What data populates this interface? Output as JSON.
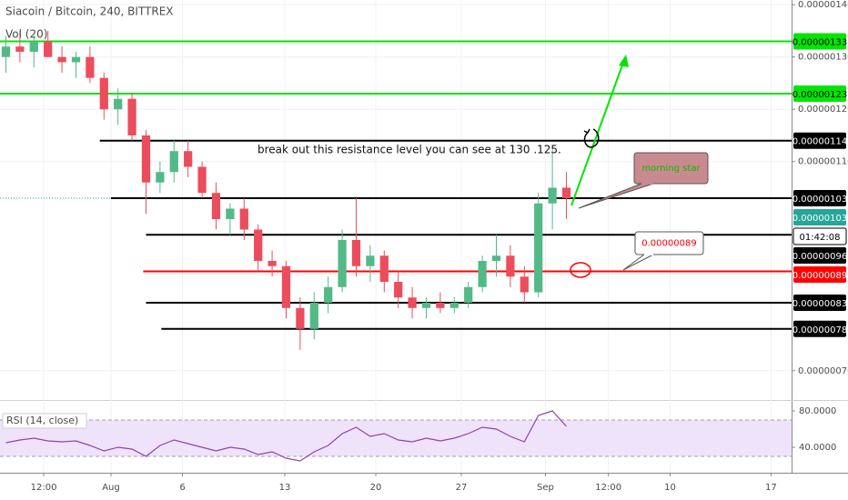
{
  "chart_data": {
    "type": "candlestick",
    "title": "Siacoin / Bitcoin, 240, BITTREX",
    "volume_label": "Vol (20)",
    "xlim": [
      -7.92,
      48.57
    ],
    "xticks": [
      {
        "value": -4.8,
        "label": "12:00"
      },
      {
        "value": 0,
        "label": "Aug"
      },
      {
        "value": 5.1,
        "label": "6"
      },
      {
        "value": 12.4,
        "label": "13"
      },
      {
        "value": 18.9,
        "label": "20"
      },
      {
        "value": 25.0,
        "label": "27"
      },
      {
        "value": 31.0,
        "label": "Sep"
      },
      {
        "value": 35.5,
        "label": "12:00"
      },
      {
        "value": 39.9,
        "label": "10"
      },
      {
        "value": 47.1,
        "label": "17"
      }
    ],
    "ylim": [
      6.44e-07,
      1.409e-06
    ],
    "yticks": [
      {
        "value": 1.4e-06,
        "label": "0.00000140"
      },
      {
        "value": 1.3e-06,
        "label": "0.00000130"
      },
      {
        "value": 1.2e-06,
        "label": "0.00000120"
      },
      {
        "value": 1.1e-06,
        "label": "0.00000110"
      },
      {
        "value": 7e-07,
        "label": "0.00000070"
      }
    ],
    "grid": true,
    "up_color": "#53b987",
    "down_color": "#eb4d5c",
    "x": [
      -7.5,
      -6.5,
      -5.5,
      -4.5,
      -3.5,
      -2.5,
      -1.5,
      -0.5,
      0.5,
      1.5,
      2.5,
      3.5,
      4.5,
      5.5,
      6.5,
      7.5,
      8.5,
      9.5,
      10.5,
      11.5,
      12.5,
      13.5,
      14.5,
      15.5,
      16.5,
      17.5,
      18.5,
      19.5,
      20.5,
      21.5,
      22.5,
      23.5,
      24.5,
      25.5,
      26.5,
      27.5,
      28.5,
      29.5,
      30.5,
      31.5,
      32.5
    ],
    "open": [
      1.3e-06,
      1.32e-06,
      1.31e-06,
      1.33e-06,
      1.3e-06,
      1.29e-06,
      1.3e-06,
      1.26e-06,
      1.2e-06,
      1.22e-06,
      1.15e-06,
      1.06e-06,
      1.08e-06,
      1.12e-06,
      1.09e-06,
      1.04e-06,
      9.9e-07,
      1.01e-06,
      9.7e-07,
      9.1e-07,
      9e-07,
      8.2e-07,
      7.8e-07,
      8.3e-07,
      8.6e-07,
      9.5e-07,
      9e-07,
      9.2e-07,
      8.7e-07,
      8.4e-07,
      8.2e-07,
      8.3e-07,
      8.2e-07,
      8.3e-07,
      8.6e-07,
      9.1e-07,
      9.2e-07,
      8.8e-07,
      8.5e-07,
      1.02e-06,
      1.05e-06
    ],
    "high": [
      1.34e-06,
      1.35e-06,
      1.34e-06,
      1.35e-06,
      1.32e-06,
      1.31e-06,
      1.32e-06,
      1.27e-06,
      1.24e-06,
      1.23e-06,
      1.16e-06,
      1.1e-06,
      1.14e-06,
      1.14e-06,
      1.1e-06,
      1.06e-06,
      1.02e-06,
      1.03e-06,
      9.8e-07,
      9.3e-07,
      9.1e-07,
      8.4e-07,
      8.5e-07,
      8.8e-07,
      9.7e-07,
      1.03e-06,
      9.4e-07,
      9.3e-07,
      8.9e-07,
      8.6e-07,
      8.4e-07,
      8.5e-07,
      8.4e-07,
      8.7e-07,
      9.2e-07,
      9.6e-07,
      9.4e-07,
      9e-07,
      1.04e-06,
      1.13e-06,
      1.08e-06
    ],
    "low": [
      1.27e-06,
      1.29e-06,
      1.28e-06,
      1.3e-06,
      1.27e-06,
      1.26e-06,
      1.25e-06,
      1.18e-06,
      1.17e-06,
      1.14e-06,
      1e-06,
      1.04e-06,
      1.06e-06,
      1.07e-06,
      1.03e-06,
      9.7e-07,
      9.6e-07,
      9.5e-07,
      8.9e-07,
      8.8e-07,
      8e-07,
      7.4e-07,
      7.6e-07,
      8.1e-07,
      8.5e-07,
      8.8e-07,
      8.7e-07,
      8.5e-07,
      8.2e-07,
      8e-07,
      8e-07,
      8.1e-07,
      8.1e-07,
      8.2e-07,
      8.5e-07,
      8.8e-07,
      8.6e-07,
      8.3e-07,
      8.4e-07,
      9.7e-07,
      9.9e-07
    ],
    "close": [
      1.32e-06,
      1.31e-06,
      1.33e-06,
      1.3e-06,
      1.29e-06,
      1.3e-06,
      1.26e-06,
      1.2e-06,
      1.22e-06,
      1.15e-06,
      1.06e-06,
      1.08e-06,
      1.12e-06,
      1.09e-06,
      1.04e-06,
      9.9e-07,
      1.01e-06,
      9.7e-07,
      9.1e-07,
      9e-07,
      8.2e-07,
      7.8e-07,
      8.3e-07,
      8.6e-07,
      9.5e-07,
      9e-07,
      9.2e-07,
      8.7e-07,
      8.4e-07,
      8.2e-07,
      8.3e-07,
      8.2e-07,
      8.3e-07,
      8.6e-07,
      9.1e-07,
      9.2e-07,
      8.8e-07,
      8.5e-07,
      1.02e-06,
      1.05e-06,
      1.03e-06
    ],
    "last_label": "0.00000103",
    "last_color": "#26a69a",
    "countdown": "01:42:08",
    "levels": [
      {
        "value": 1.33e-06,
        "label": "0.00000133",
        "from": -7.92,
        "color": "#00e600"
      },
      {
        "value": 1.23e-06,
        "label": "0.00000123",
        "from": -7.92,
        "color": "#00e600"
      },
      {
        "value": 1.14e-06,
        "label": "0.00000114",
        "from": -0.8,
        "color": "#000000"
      },
      {
        "value": 1.03e-06,
        "label": "0.00000103",
        "from": 0,
        "color": "#000000"
      },
      {
        "value": 9.6e-07,
        "label": "0.00000096",
        "from": 2.5,
        "color": "#000000"
      },
      {
        "value": 8.9e-07,
        "label": "0.00000089",
        "from": 2.3,
        "color": "#ff0000"
      },
      {
        "value": 8.3e-07,
        "label": "0.00000083",
        "from": 2.5,
        "color": "#000000"
      },
      {
        "value": 7.8e-07,
        "label": "0.00000078",
        "from": 3.6,
        "color": "#000000"
      }
    ],
    "annotation": "break out this resistance level you can see at 130 .125.",
    "callouts": [
      {
        "text": "morning star",
        "color": "#00c000",
        "fill": "#c98a8f"
      },
      {
        "text": "0.00000089",
        "color": "#ff0000",
        "fill": "#ffffff"
      }
    ],
    "rsi": {
      "label": "RSI (14, close)",
      "color": "#8e44ad",
      "ylim": [
        12,
        87
      ],
      "yticks": [
        {
          "value": 80,
          "label": "80.0000"
        },
        {
          "value": 40,
          "label": "40.0000"
        }
      ],
      "band": [
        30,
        70
      ],
      "values": [
        45,
        48,
        50,
        47,
        46,
        47,
        42,
        36,
        40,
        38,
        30,
        42,
        48,
        44,
        40,
        36,
        40,
        38,
        32,
        35,
        28,
        25,
        35,
        42,
        55,
        62,
        52,
        55,
        48,
        46,
        50,
        47,
        50,
        55,
        62,
        60,
        52,
        46,
        75,
        80,
        63
      ]
    }
  }
}
